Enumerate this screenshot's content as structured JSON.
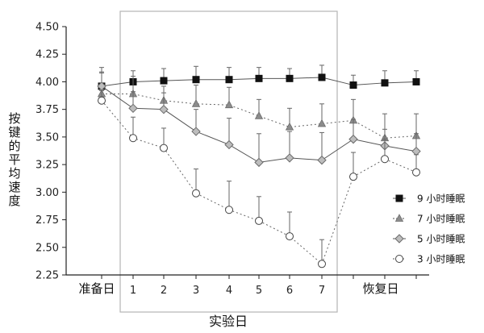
{
  "chart_data": {
    "type": "line",
    "xlabel": "实验日",
    "ylabel": "按键的平均速度",
    "ylim": [
      2.25,
      4.5
    ],
    "yticks": [
      "2.25",
      "2.50",
      "2.75",
      "3.00",
      "3.25",
      "3.50",
      "3.75",
      "4.00",
      "4.25",
      "4.50"
    ],
    "x_labels": [
      "准备日",
      "1",
      "2",
      "3",
      "4",
      "5",
      "6",
      "7",
      "恢复日"
    ],
    "shaded_region_label": "实验日 1–7",
    "legend_position": "right",
    "series": [
      {
        "name": "9 小时睡眠",
        "marker": "square",
        "line_style": "solid",
        "color": "#111111",
        "x": [
          "准备日",
          "1",
          "2",
          "3",
          "4",
          "5",
          "6",
          "7",
          "恢复日a",
          "恢复日b",
          "恢复日c"
        ],
        "values": [
          3.96,
          4.0,
          4.01,
          4.02,
          4.02,
          4.03,
          4.03,
          4.04,
          3.97,
          3.99,
          4.0
        ],
        "error_plus": [
          0.17,
          0.1,
          0.11,
          0.12,
          0.11,
          0.1,
          0.09,
          0.11,
          0.09,
          0.11,
          0.1
        ]
      },
      {
        "name": "7 小时睡眠",
        "marker": "triangle",
        "line_style": "dotted",
        "color": "#888888",
        "x": [
          "准备日",
          "1",
          "2",
          "3",
          "4",
          "5",
          "6",
          "7",
          "恢复日a",
          "恢复日b",
          "恢复日c"
        ],
        "values": [
          3.89,
          3.89,
          3.83,
          3.8,
          3.79,
          3.69,
          3.59,
          3.62,
          3.65,
          3.49,
          3.51
        ],
        "error_plus": [
          0.2,
          0.16,
          0.13,
          0.17,
          0.16,
          0.15,
          0.17,
          0.18,
          0.19,
          0.22,
          0.2
        ]
      },
      {
        "name": "5 小时睡眠",
        "marker": "diamond",
        "line_style": "solid",
        "color": "#666666",
        "x": [
          "准备日",
          "1",
          "2",
          "3",
          "4",
          "5",
          "6",
          "7",
          "恢复日a",
          "恢复日b",
          "恢复日c"
        ],
        "values": [
          3.96,
          3.76,
          3.75,
          3.55,
          3.43,
          3.27,
          3.31,
          3.29,
          3.48,
          3.42,
          3.37
        ],
        "error_plus": [
          0.12,
          0.15,
          0.15,
          0.2,
          0.24,
          0.26,
          0.24,
          0.25,
          0.18,
          0.15,
          0.16
        ]
      },
      {
        "name": "3 小时睡眠",
        "marker": "circle",
        "line_style": "dotted",
        "color": "#555555",
        "x": [
          "准备日",
          "1",
          "2",
          "3",
          "4",
          "5",
          "6",
          "7",
          "恢复日a",
          "恢复日b",
          "恢复日c"
        ],
        "values": [
          3.83,
          3.49,
          3.4,
          2.99,
          2.84,
          2.74,
          2.6,
          2.35,
          3.14,
          3.3,
          3.18
        ],
        "error_plus": [
          0.09,
          0.19,
          0.18,
          0.22,
          0.26,
          0.22,
          0.22,
          0.22,
          0.22,
          0.18,
          0.16
        ]
      }
    ]
  }
}
